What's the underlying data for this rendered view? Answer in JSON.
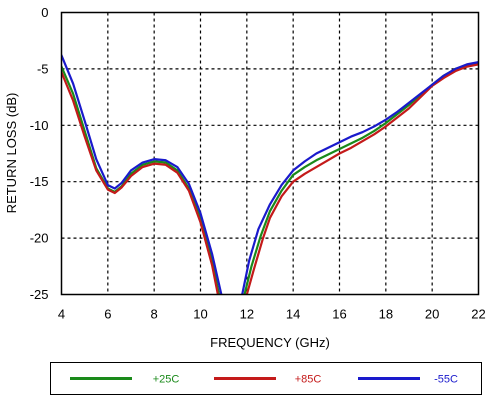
{
  "chart_data": {
    "type": "line",
    "xlabel": "FREQUENCY (GHz)",
    "ylabel": "RETURN LOSS (dB)",
    "xlim": [
      4,
      22
    ],
    "ylim": [
      -25,
      0
    ],
    "x_ticks": [
      "4",
      "6",
      "8",
      "10",
      "12",
      "14",
      "16",
      "18",
      "20",
      "22"
    ],
    "y_ticks": [
      "0",
      "-5",
      "-10",
      "-15",
      "-20",
      "-25"
    ],
    "grid": true,
    "legend_position": "bottom",
    "series": [
      {
        "name": "+25C",
        "color": "#1a8a1a",
        "points": [
          [
            4,
            -4.8
          ],
          [
            4.5,
            -7.2
          ],
          [
            5,
            -10.5
          ],
          [
            5.5,
            -13.8
          ],
          [
            6,
            -15.6
          ],
          [
            6.3,
            -15.9
          ],
          [
            6.6,
            -15.4
          ],
          [
            7,
            -14.3
          ],
          [
            7.5,
            -13.5
          ],
          [
            8,
            -13.2
          ],
          [
            8.5,
            -13.3
          ],
          [
            9,
            -14.0
          ],
          [
            9.5,
            -15.6
          ],
          [
            10,
            -18.3
          ],
          [
            10.5,
            -22.0
          ],
          [
            10.8,
            -25.0
          ]
        ]
      },
      {
        "name": "+25C",
        "color": "#1a8a1a",
        "points": [
          [
            11.9,
            -25.0
          ],
          [
            12.2,
            -22.5
          ],
          [
            12.6,
            -19.8
          ],
          [
            13,
            -17.6
          ],
          [
            13.5,
            -15.8
          ],
          [
            14,
            -14.4
          ],
          [
            14.5,
            -13.7
          ],
          [
            15,
            -13.1
          ],
          [
            15.5,
            -12.6
          ],
          [
            16,
            -12.1
          ],
          [
            16.5,
            -11.6
          ],
          [
            17,
            -11.1
          ],
          [
            17.5,
            -10.5
          ],
          [
            18,
            -9.8
          ],
          [
            18.5,
            -9.0
          ],
          [
            19,
            -8.2
          ],
          [
            19.5,
            -7.3
          ],
          [
            20,
            -6.4
          ],
          [
            20.5,
            -5.6
          ],
          [
            21,
            -5.0
          ],
          [
            21.5,
            -4.7
          ],
          [
            22,
            -4.5
          ]
        ]
      },
      {
        "name": "+85C",
        "color": "#c41a1a",
        "points": [
          [
            4,
            -5.3
          ],
          [
            4.5,
            -7.8
          ],
          [
            5,
            -11.0
          ],
          [
            5.5,
            -14.0
          ],
          [
            6,
            -15.7
          ],
          [
            6.3,
            -16.0
          ],
          [
            6.6,
            -15.5
          ],
          [
            7,
            -14.5
          ],
          [
            7.5,
            -13.7
          ],
          [
            8,
            -13.4
          ],
          [
            8.5,
            -13.5
          ],
          [
            9,
            -14.2
          ],
          [
            9.5,
            -15.8
          ],
          [
            10,
            -18.6
          ],
          [
            10.5,
            -22.4
          ],
          [
            10.75,
            -25.0
          ]
        ]
      },
      {
        "name": "+85C",
        "color": "#c41a1a",
        "points": [
          [
            12.0,
            -25.0
          ],
          [
            12.3,
            -22.8
          ],
          [
            12.7,
            -20.0
          ],
          [
            13,
            -18.2
          ],
          [
            13.5,
            -16.3
          ],
          [
            14,
            -15.0
          ],
          [
            14.5,
            -14.3
          ],
          [
            15,
            -13.7
          ],
          [
            15.5,
            -13.1
          ],
          [
            16,
            -12.5
          ],
          [
            16.5,
            -12.0
          ],
          [
            17,
            -11.4
          ],
          [
            17.5,
            -10.8
          ],
          [
            18,
            -10.1
          ],
          [
            18.5,
            -9.3
          ],
          [
            19,
            -8.5
          ],
          [
            19.5,
            -7.5
          ],
          [
            20,
            -6.5
          ],
          [
            20.5,
            -5.8
          ],
          [
            21,
            -5.2
          ],
          [
            21.5,
            -4.8
          ],
          [
            22,
            -4.6
          ]
        ]
      },
      {
        "name": "-55C",
        "color": "#1a1acc",
        "points": [
          [
            4,
            -3.8
          ],
          [
            4.5,
            -6.3
          ],
          [
            5,
            -9.6
          ],
          [
            5.5,
            -13.0
          ],
          [
            6,
            -15.3
          ],
          [
            6.3,
            -15.6
          ],
          [
            6.6,
            -15.1
          ],
          [
            7,
            -14.0
          ],
          [
            7.5,
            -13.3
          ],
          [
            8,
            -13.0
          ],
          [
            8.5,
            -13.1
          ],
          [
            9,
            -13.7
          ],
          [
            9.5,
            -15.2
          ],
          [
            10,
            -17.8
          ],
          [
            10.5,
            -21.4
          ],
          [
            10.9,
            -25.0
          ]
        ]
      },
      {
        "name": "-55C",
        "color": "#1a1acc",
        "points": [
          [
            11.8,
            -25.0
          ],
          [
            12.1,
            -22.0
          ],
          [
            12.5,
            -19.2
          ],
          [
            13,
            -17.0
          ],
          [
            13.5,
            -15.3
          ],
          [
            14,
            -14.0
          ],
          [
            14.5,
            -13.2
          ],
          [
            15,
            -12.5
          ],
          [
            15.5,
            -12.0
          ],
          [
            16,
            -11.5
          ],
          [
            16.5,
            -11.0
          ],
          [
            17,
            -10.6
          ],
          [
            17.5,
            -10.1
          ],
          [
            18,
            -9.5
          ],
          [
            18.5,
            -8.8
          ],
          [
            19,
            -8.0
          ],
          [
            19.5,
            -7.2
          ],
          [
            20,
            -6.4
          ],
          [
            20.5,
            -5.6
          ],
          [
            21,
            -5.0
          ],
          [
            21.5,
            -4.6
          ],
          [
            22,
            -4.4
          ]
        ]
      }
    ],
    "legend": [
      {
        "name": "+25C",
        "color": "#1a8a1a"
      },
      {
        "name": "+85C",
        "color": "#c41a1a"
      },
      {
        "name": "-55C",
        "color": "#1a1acc"
      }
    ]
  }
}
